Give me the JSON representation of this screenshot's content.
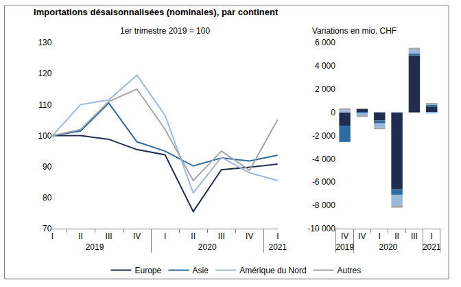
{
  "title": "Importations désaisonnalisées (nominales), par continent",
  "chart_data": [
    {
      "type": "line",
      "subtitle": "1er trimestre 2019 = 100",
      "categories": [
        "I",
        "II",
        "III",
        "IV",
        "I",
        "II",
        "III",
        "IV",
        "I"
      ],
      "category_groups": [
        "2019",
        "2019",
        "2019",
        "2019",
        "2020",
        "2020",
        "2020",
        "2020",
        "2021"
      ],
      "ylim": [
        70,
        130
      ],
      "yticks": [
        70,
        80,
        90,
        100,
        110,
        120,
        130
      ],
      "grid": false,
      "legend": "bottom",
      "series": [
        {
          "name": "Europe",
          "color": "#1f2d4e",
          "values": [
            100,
            100,
            98.8,
            95.5,
            93.8,
            75.5,
            89,
            89.8,
            90.8
          ]
        },
        {
          "name": "Asie",
          "color": "#2e6da4",
          "values": [
            100,
            101.5,
            110.5,
            98,
            95,
            90.2,
            92.8,
            91.8,
            93.7
          ]
        },
        {
          "name": "Amérique du Nord",
          "color": "#9db8de",
          "values": [
            100,
            110,
            111.5,
            119.5,
            106.5,
            81.5,
            93,
            88,
            85.5
          ]
        },
        {
          "name": "Autres",
          "color": "#a6a6a6",
          "values": [
            100,
            102,
            111,
            115,
            102,
            85.5,
            95,
            88.8,
            105.2
          ]
        }
      ]
    },
    {
      "type": "bar",
      "subtitle": "Variations en mio. CHF",
      "stacked": true,
      "categories": [
        "IV",
        "I",
        "II",
        "III",
        "IV",
        "I"
      ],
      "category_groups": [
        "2019",
        "2020",
        "2020",
        "2020",
        "2020",
        "2021"
      ],
      "ylim": [
        -10000,
        6000
      ],
      "yticks": [
        {
          "value": -10000,
          "label": "-10 000"
        },
        {
          "value": -8000,
          "label": "-8 000"
        },
        {
          "value": -6000,
          "label": "-6 000"
        },
        {
          "value": -4000,
          "label": "-4 000"
        },
        {
          "value": -2000,
          "label": "-2 000"
        },
        0,
        {
          "value": 2000,
          "label": "2 000"
        },
        {
          "value": 4000,
          "label": "4 000"
        },
        {
          "value": 6000,
          "label": "6 000"
        }
      ],
      "grid": false,
      "series": [
        {
          "name": "Europe",
          "color": "#1f2d4e",
          "values": [
            -1150,
            -700,
            -6600,
            4900,
            300,
            450
          ]
        },
        {
          "name": "Asie",
          "color": "#2e6da4",
          "values": [
            -1400,
            -250,
            -500,
            150,
            -50,
            200
          ]
        },
        {
          "name": "Amérique du Nord",
          "color": "#9db8de",
          "values": [
            200,
            -350,
            -900,
            350,
            -250,
            -100
          ]
        },
        {
          "name": "Autres",
          "color": "#a6a6a6",
          "values": [
            150,
            -150,
            -200,
            150,
            -100,
            150
          ]
        }
      ]
    }
  ]
}
